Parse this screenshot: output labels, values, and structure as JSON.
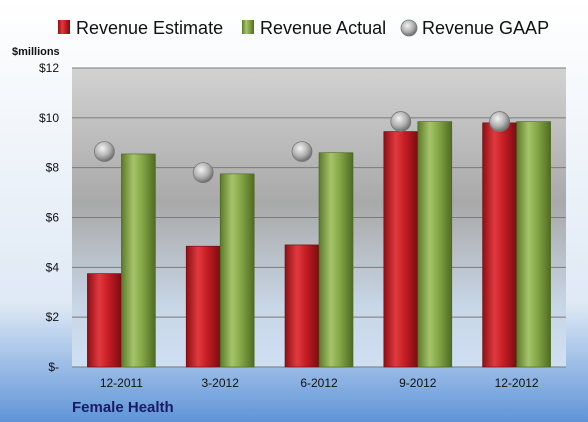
{
  "colors": {
    "estimate": "#c81e25",
    "actual": "#82a544",
    "gaap": "#a9a9a9"
  },
  "chart_data": {
    "type": "bar",
    "unit_label": "$millions",
    "company": "Female Health",
    "categories": [
      "12-2011",
      "3-2012",
      "6-2012",
      "9-2012",
      "12-2012"
    ],
    "series": [
      {
        "name": "Revenue Estimate",
        "kind": "bar",
        "values": [
          3.75,
          4.85,
          4.9,
          9.45,
          9.8
        ]
      },
      {
        "name": "Revenue Actual",
        "kind": "bar",
        "values": [
          8.55,
          7.75,
          8.6,
          9.85,
          9.85
        ]
      },
      {
        "name": "Revenue GAAP",
        "kind": "marker",
        "values": [
          8.65,
          7.8,
          8.65,
          9.85,
          9.85
        ]
      }
    ],
    "yticks": [
      "$-",
      "$2",
      "$4",
      "$6",
      "$8",
      "$10",
      "$12"
    ],
    "ylim": [
      0,
      12
    ],
    "grid": true,
    "legend_position": "top"
  }
}
